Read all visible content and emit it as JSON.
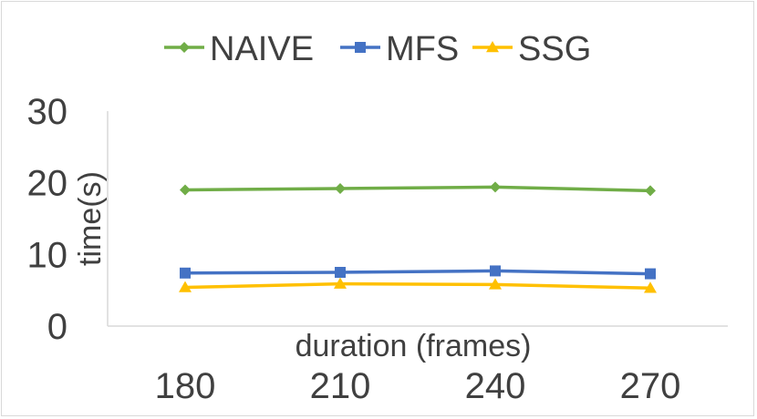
{
  "chart_data": {
    "type": "line",
    "title": "",
    "xlabel": "duration (frames)",
    "ylabel": "time(s)",
    "categories": [
      "180",
      "210",
      "240",
      "270"
    ],
    "ylim": [
      0,
      30
    ],
    "yticks": [
      "0",
      "10",
      "20",
      "30"
    ],
    "grid": false,
    "legend_position": "top",
    "series": [
      {
        "name": "NAIVE",
        "values": [
          19.0,
          19.2,
          19.4,
          18.9
        ],
        "color": "#70ad47",
        "marker": "diamond"
      },
      {
        "name": "MFS",
        "values": [
          7.4,
          7.5,
          7.7,
          7.3
        ],
        "color": "#4472c4",
        "marker": "square"
      },
      {
        "name": "SSG",
        "values": [
          5.4,
          5.9,
          5.8,
          5.3
        ],
        "color": "#ffc000",
        "marker": "triangle"
      }
    ]
  }
}
